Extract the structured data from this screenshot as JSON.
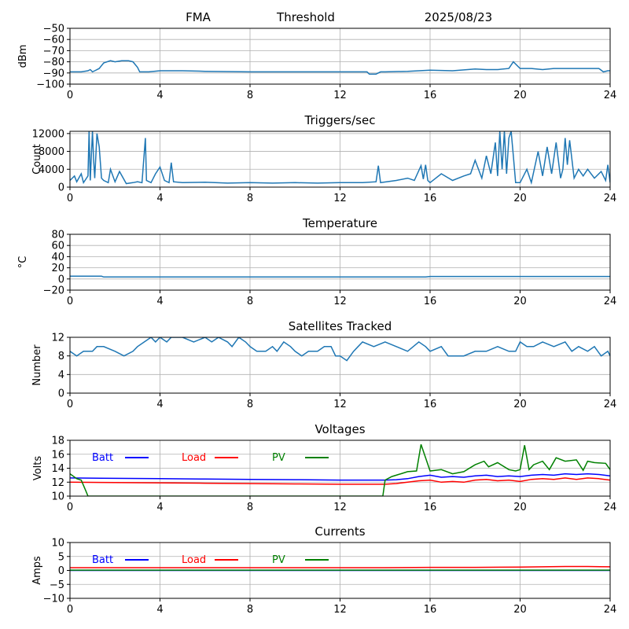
{
  "header": {
    "station": "FMA",
    "mode": "Threshold",
    "date": "2025/08/23"
  },
  "chart_data": [
    {
      "id": "threshold",
      "type": "line",
      "title": "",
      "ylabel": "dBm",
      "xlim": [
        0,
        24
      ],
      "ylim": [
        -100,
        -50
      ],
      "xticks": [
        0,
        4,
        8,
        12,
        16,
        20,
        24
      ],
      "yticks": [
        -100,
        -90,
        -80,
        -70,
        -60,
        -50
      ],
      "ytick_labels": [
        "−100",
        "−90",
        "−80",
        "−70",
        "−60",
        "−50"
      ],
      "grid": true,
      "series": [
        {
          "color": "#1f77b4",
          "x": [
            0,
            0.5,
            0.8,
            0.9,
            1.0,
            1.1,
            1.3,
            1.5,
            1.8,
            2.0,
            2.3,
            2.6,
            2.8,
            3.0,
            3.1,
            3.5,
            4.0,
            5.0,
            6.0,
            8.0,
            10.0,
            12.0,
            13.2,
            13.3,
            13.6,
            13.8,
            14.0,
            15.0,
            15.5,
            16.0,
            17.0,
            18.0,
            18.5,
            19.0,
            19.5,
            19.7,
            20.0,
            20.5,
            21.0,
            21.5,
            22.0,
            22.5,
            23.0,
            23.5,
            23.7,
            23.9,
            24.0
          ],
          "y": [
            -89,
            -89,
            -88,
            -87,
            -89,
            -88,
            -86,
            -81,
            -79,
            -80,
            -79,
            -79,
            -80,
            -85,
            -89,
            -89,
            -88,
            -88,
            -88.5,
            -89,
            -89,
            -89,
            -89,
            -91,
            -91,
            -89,
            -89,
            -88.5,
            -88,
            -87.5,
            -88,
            -86.5,
            -87,
            -87,
            -86,
            -80,
            -86,
            -86,
            -87,
            -86,
            -86,
            -86,
            -86,
            -86,
            -89,
            -88,
            -88
          ]
        }
      ]
    },
    {
      "id": "triggers",
      "type": "line",
      "title": "Triggers/sec",
      "ylabel": "Count",
      "xlim": [
        0,
        24
      ],
      "ylim": [
        0,
        12500
      ],
      "xticks": [
        0,
        4,
        8,
        12,
        16,
        20,
        24
      ],
      "yticks": [
        0,
        4000,
        8000,
        12000
      ],
      "ytick_labels": [
        "0",
        "4000",
        "8000",
        "12000"
      ],
      "grid": true,
      "series": [
        {
          "color": "#1f77b4",
          "x": [
            0,
            0.2,
            0.3,
            0.5,
            0.6,
            0.8,
            0.85,
            0.9,
            1.0,
            1.05,
            1.1,
            1.2,
            1.3,
            1.4,
            1.5,
            1.7,
            1.8,
            2.0,
            2.2,
            2.5,
            2.8,
            3.0,
            3.2,
            3.35,
            3.4,
            3.6,
            3.8,
            4.0,
            4.2,
            4.4,
            4.5,
            4.6,
            5.0,
            6.0,
            7.0,
            8.0,
            9.0,
            10.0,
            11.0,
            12.0,
            13.0,
            13.6,
            13.7,
            13.8,
            14.5,
            15.0,
            15.3,
            15.6,
            15.7,
            15.8,
            15.9,
            16.0,
            16.5,
            17.0,
            17.5,
            17.8,
            18.0,
            18.3,
            18.5,
            18.7,
            18.9,
            19.0,
            19.1,
            19.2,
            19.3,
            19.4,
            19.5,
            19.6,
            19.7,
            19.8,
            20.0,
            20.3,
            20.5,
            20.8,
            21.0,
            21.2,
            21.4,
            21.6,
            21.8,
            21.9,
            22.0,
            22.1,
            22.2,
            22.4,
            22.6,
            22.8,
            23.0,
            23.3,
            23.6,
            23.8,
            23.9,
            24.0
          ],
          "y": [
            1500,
            2500,
            1200,
            3000,
            1000,
            2500,
            12500,
            1500,
            12500,
            6000,
            2000,
            12000,
            9000,
            2000,
            1500,
            1000,
            4000,
            1200,
            3500,
            800,
            1000,
            1200,
            1000,
            11000,
            1500,
            1000,
            3000,
            4500,
            1500,
            1000,
            5500,
            1200,
            1000,
            1100,
            900,
            1000,
            900,
            1000,
            900,
            1000,
            1000,
            1200,
            4800,
            1000,
            1500,
            2000,
            1500,
            4800,
            1800,
            5000,
            1500,
            1000,
            3000,
            1500,
            2500,
            3000,
            6000,
            2000,
            7000,
            3000,
            10000,
            2500,
            12500,
            4000,
            12500,
            3000,
            11000,
            12500,
            7000,
            1000,
            1000,
            4000,
            1000,
            8000,
            2500,
            9000,
            3000,
            10000,
            2000,
            4000,
            11000,
            5000,
            10500,
            2000,
            4000,
            2500,
            4000,
            2000,
            3500,
            1500,
            5000,
            1000
          ]
        }
      ]
    },
    {
      "id": "temperature",
      "type": "line",
      "title": "Temperature",
      "ylabel": "°C",
      "xlim": [
        0,
        24
      ],
      "ylim": [
        -20,
        80
      ],
      "xticks": [
        0,
        4,
        8,
        12,
        16,
        20,
        24
      ],
      "yticks": [
        -20,
        0,
        20,
        40,
        60,
        80
      ],
      "ytick_labels": [
        "−20",
        "0",
        "20",
        "40",
        "60",
        "80"
      ],
      "grid": true,
      "series": [
        {
          "color": "#1f77b4",
          "x": [
            0,
            1.0,
            1.4,
            1.5,
            4,
            8,
            12,
            15.8,
            16.0,
            20,
            24
          ],
          "y": [
            5,
            5,
            5,
            3.5,
            3.5,
            3.5,
            3.5,
            3.5,
            4.5,
            4.5,
            4.5
          ]
        }
      ]
    },
    {
      "id": "satellites",
      "type": "line",
      "title": "Satellites Tracked",
      "ylabel": "Number",
      "xlim": [
        0,
        24
      ],
      "ylim": [
        0,
        12
      ],
      "xticks": [
        0,
        4,
        8,
        12,
        16,
        20,
        24
      ],
      "yticks": [
        0,
        4,
        8,
        12
      ],
      "ytick_labels": [
        "0",
        "4",
        "8",
        "12"
      ],
      "grid": true,
      "series": [
        {
          "color": "#1f77b4",
          "x": [
            0,
            0.3,
            0.6,
            1.0,
            1.2,
            1.5,
            2.0,
            2.4,
            2.8,
            3.0,
            3.3,
            3.6,
            3.8,
            4.0,
            4.3,
            4.5,
            5.0,
            5.5,
            6.0,
            6.3,
            6.6,
            7.0,
            7.2,
            7.5,
            7.8,
            8.0,
            8.3,
            8.7,
            9.0,
            9.2,
            9.5,
            9.8,
            10.0,
            10.3,
            10.6,
            11.0,
            11.3,
            11.6,
            11.8,
            12.0,
            12.3,
            12.6,
            12.8,
            13.0,
            13.5,
            14.0,
            14.5,
            15.0,
            15.5,
            15.8,
            16.0,
            16.5,
            16.8,
            17.5,
            18.0,
            18.5,
            19.0,
            19.5,
            19.8,
            20.0,
            20.3,
            20.6,
            21.0,
            21.5,
            22.0,
            22.3,
            22.6,
            23.0,
            23.3,
            23.6,
            23.9,
            24.0
          ],
          "y": [
            9,
            8,
            9,
            9,
            10,
            10,
            9,
            8,
            9,
            10,
            11,
            12,
            11,
            12,
            11,
            12,
            12,
            11,
            12,
            11,
            12,
            11,
            10,
            12,
            11,
            10,
            9,
            9,
            10,
            9,
            11,
            10,
            9,
            8,
            9,
            9,
            10,
            10,
            8,
            8,
            7,
            9,
            10,
            11,
            10,
            11,
            10,
            9,
            11,
            10,
            9,
            10,
            8,
            8,
            9,
            9,
            10,
            9,
            9,
            11,
            10,
            10,
            11,
            10,
            11,
            9,
            10,
            9,
            10,
            8,
            9,
            8
          ]
        }
      ]
    },
    {
      "id": "voltages",
      "type": "line",
      "title": "Voltages",
      "ylabel": "Volts",
      "xlim": [
        0,
        24
      ],
      "ylim": [
        10,
        18
      ],
      "xticks": [
        0,
        4,
        8,
        12,
        16,
        20,
        24
      ],
      "yticks": [
        10,
        12,
        14,
        16,
        18
      ],
      "ytick_labels": [
        "10",
        "12",
        "14",
        "16",
        "18"
      ],
      "grid": true,
      "legend": [
        "Batt",
        "Load",
        "PV"
      ],
      "series": [
        {
          "name": "Batt",
          "color": "#0000ff",
          "x": [
            0,
            2,
            4,
            6,
            8,
            10,
            12,
            13,
            14,
            14.5,
            15,
            15.5,
            16,
            16.5,
            17,
            17.5,
            18,
            18.5,
            19,
            19.5,
            20,
            20.5,
            21,
            21.5,
            22,
            22.5,
            23,
            23.5,
            24
          ],
          "y": [
            12.6,
            12.55,
            12.5,
            12.45,
            12.4,
            12.35,
            12.3,
            12.3,
            12.3,
            12.35,
            12.5,
            12.8,
            13.0,
            12.7,
            12.8,
            12.7,
            12.9,
            13.0,
            12.8,
            12.9,
            12.8,
            13.0,
            13.1,
            13.0,
            13.2,
            13.1,
            13.2,
            13.1,
            12.9
          ]
        },
        {
          "name": "Load",
          "color": "#ff0000",
          "x": [
            0,
            2,
            4,
            6,
            8,
            10,
            12,
            13,
            14,
            14.5,
            15,
            15.5,
            16,
            16.5,
            17,
            17.5,
            18,
            18.5,
            19,
            19.5,
            20,
            20.5,
            21,
            21.5,
            22,
            22.5,
            23,
            23.5,
            24
          ],
          "y": [
            12.0,
            11.95,
            11.9,
            11.85,
            11.8,
            11.75,
            11.7,
            11.7,
            11.7,
            11.8,
            12.0,
            12.2,
            12.3,
            12.0,
            12.1,
            12.0,
            12.3,
            12.4,
            12.2,
            12.3,
            12.1,
            12.4,
            12.5,
            12.4,
            12.6,
            12.4,
            12.6,
            12.5,
            12.3
          ]
        },
        {
          "name": "PV",
          "color": "#008000",
          "x": [
            0,
            0.3,
            0.5,
            0.7,
            0.8,
            13.9,
            14.0,
            14.3,
            14.7,
            15.0,
            15.4,
            15.6,
            15.8,
            16.0,
            16.5,
            17.0,
            17.5,
            18.0,
            18.4,
            18.6,
            19.0,
            19.5,
            19.8,
            20.0,
            20.2,
            20.4,
            20.6,
            21.0,
            21.3,
            21.6,
            22.0,
            22.5,
            22.8,
            23.0,
            23.3,
            23.8,
            24.0
          ],
          "y": [
            13.2,
            12.5,
            12.3,
            10.8,
            10.0,
            10.0,
            12.3,
            12.8,
            13.2,
            13.5,
            13.6,
            17.4,
            15.5,
            13.6,
            13.8,
            13.2,
            13.5,
            14.5,
            15.0,
            14.2,
            14.8,
            13.8,
            13.6,
            13.8,
            17.3,
            13.8,
            14.5,
            15.0,
            13.8,
            15.5,
            15.0,
            15.2,
            13.7,
            15.0,
            14.8,
            14.7,
            13.8
          ]
        }
      ]
    },
    {
      "id": "currents",
      "type": "line",
      "title": "Currents",
      "ylabel": "Amps",
      "xlim": [
        0,
        24
      ],
      "ylim": [
        -10,
        10
      ],
      "xticks": [
        0,
        4,
        8,
        12,
        16,
        20,
        24
      ],
      "yticks": [
        -10,
        -5,
        0,
        5,
        10
      ],
      "ytick_labels": [
        "−10",
        "−5",
        "0",
        "5",
        "10"
      ],
      "grid": true,
      "legend": [
        "Batt",
        "Load",
        "PV"
      ],
      "series": [
        {
          "name": "Batt",
          "color": "#0000ff",
          "x": [
            0,
            24
          ],
          "y": [
            0,
            0
          ]
        },
        {
          "name": "Load",
          "color": "#ff0000",
          "x": [
            0,
            4,
            8,
            12,
            14,
            16,
            18,
            20,
            21,
            22,
            23,
            24
          ],
          "y": [
            1.0,
            1.0,
            1.0,
            1.0,
            1.0,
            1.1,
            1.1,
            1.2,
            1.3,
            1.4,
            1.4,
            1.3
          ]
        },
        {
          "name": "PV",
          "color": "#008000",
          "x": [
            0,
            24
          ],
          "y": [
            0.1,
            0.1
          ]
        }
      ]
    }
  ]
}
